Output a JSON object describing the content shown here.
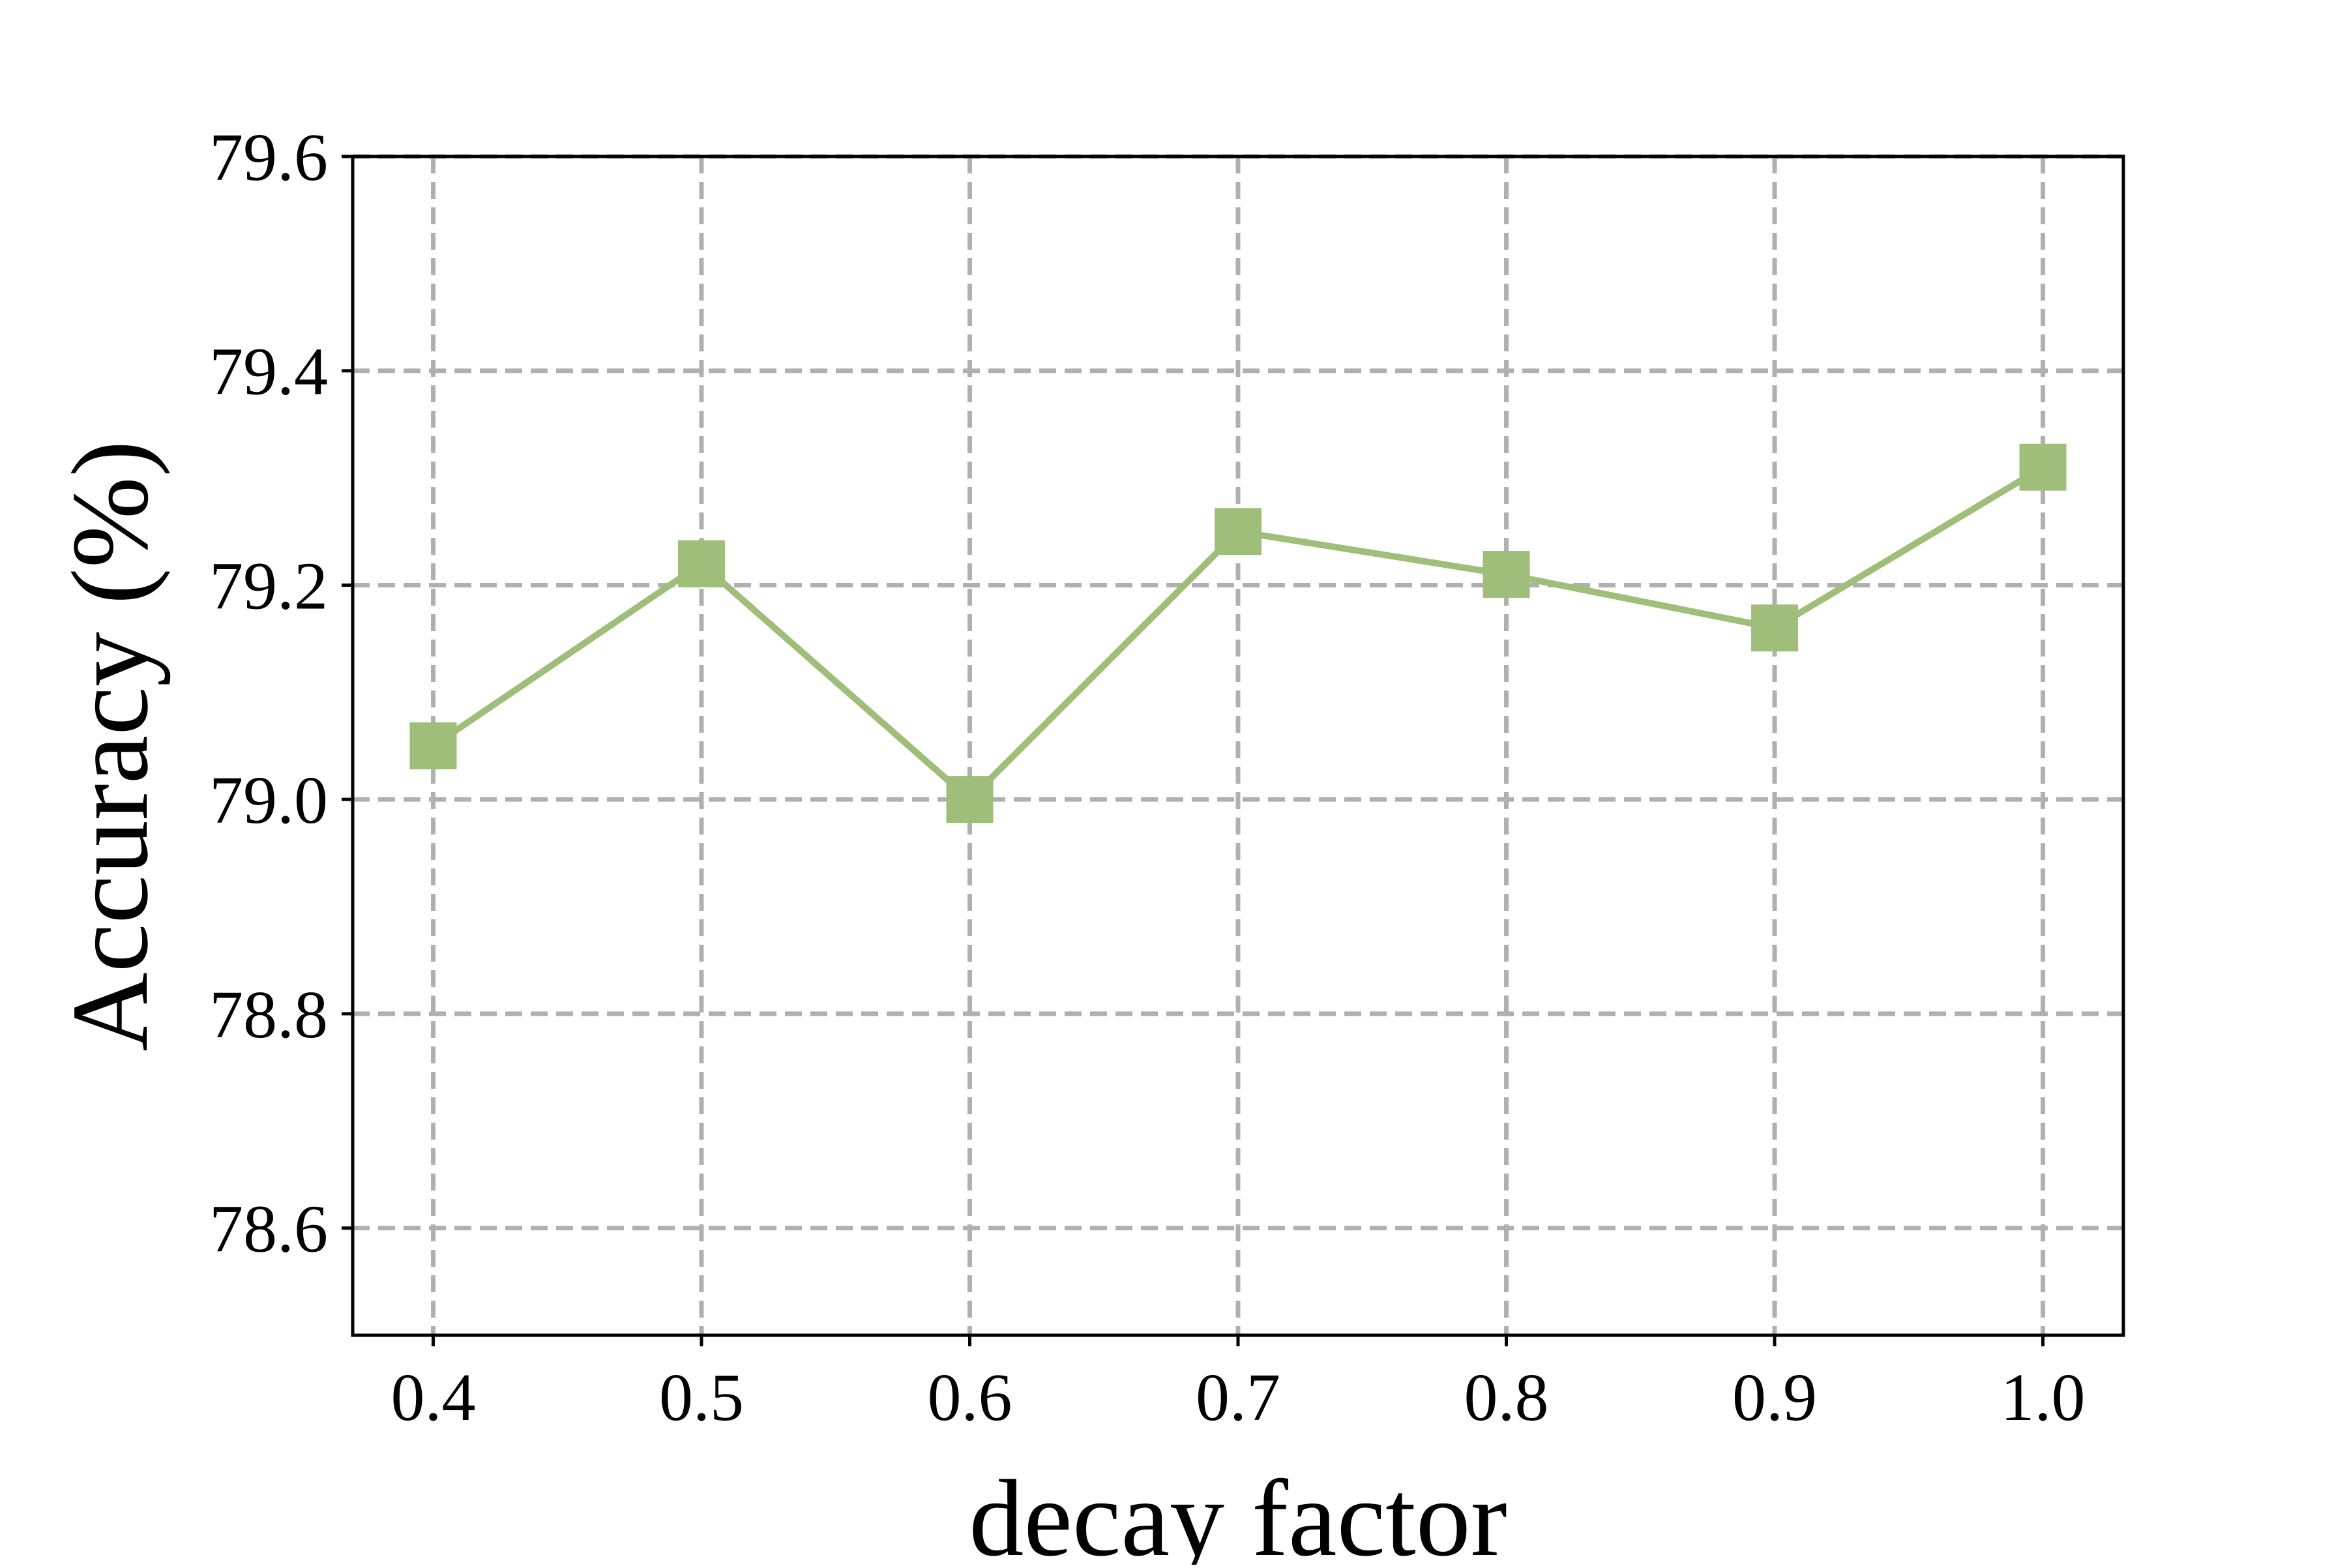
{
  "chart_data": {
    "type": "line",
    "title": "",
    "xlabel": "decay factor",
    "ylabel": "Accuracy (%)",
    "x": [
      0.4,
      0.5,
      0.6,
      0.7,
      0.8,
      0.9,
      1.0
    ],
    "x_tick_labels": [
      "0.4",
      "0.5",
      "0.6",
      "0.7",
      "0.8",
      "0.9",
      "1.0"
    ],
    "y_ticks": [
      78.6,
      78.8,
      79.0,
      79.2,
      79.4,
      79.6
    ],
    "y_tick_labels": [
      "78.6",
      "78.8",
      "79.0",
      "79.2",
      "79.4",
      "79.6"
    ],
    "xlim": [
      0.37,
      1.03
    ],
    "ylim": [
      78.5,
      79.6
    ],
    "grid": true,
    "grid_style": "dashed",
    "series": [
      {
        "values": [
          79.05,
          79.22,
          79.0,
          79.25,
          79.21,
          79.16,
          79.31
        ],
        "color": "#9ebe7a",
        "marker": "square"
      }
    ],
    "grid_color": "#b0b0b0",
    "axis_color": "#000000"
  }
}
